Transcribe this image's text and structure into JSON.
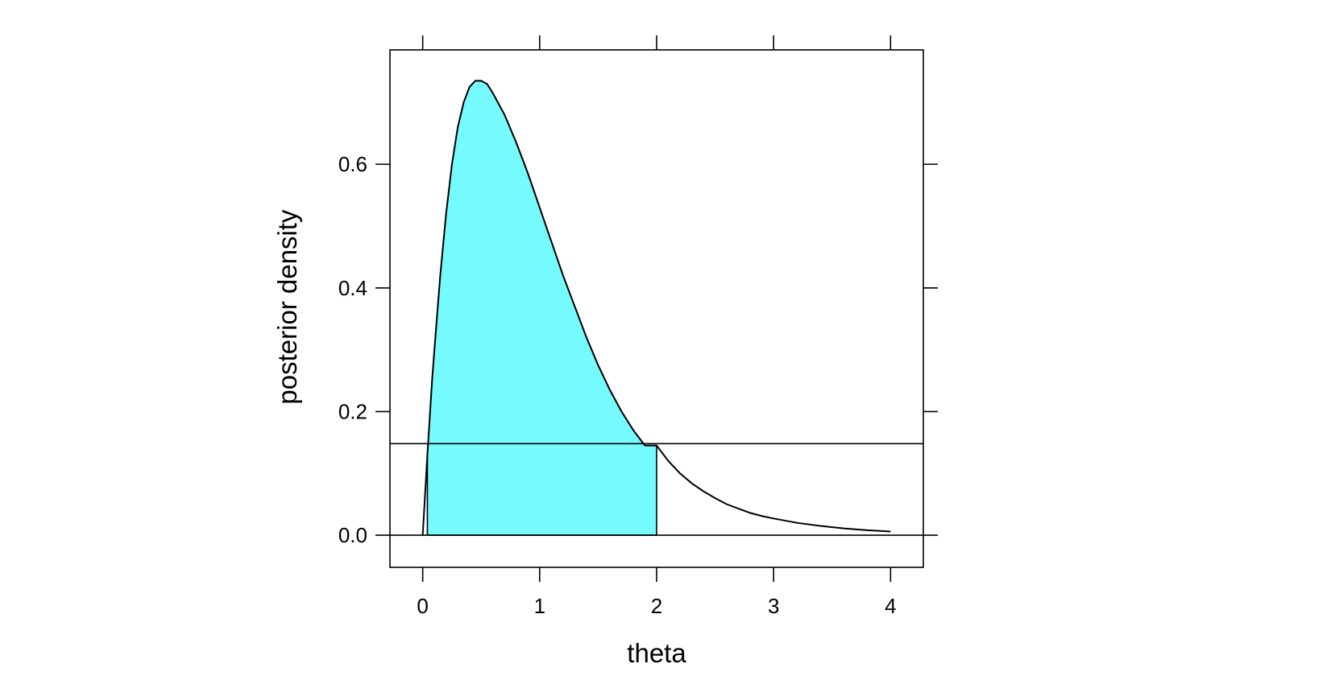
{
  "chart_data": {
    "type": "area",
    "title": "",
    "xlabel": "theta",
    "ylabel": "posterior density",
    "xlim": [
      -0.28,
      4.28
    ],
    "ylim": [
      -0.052,
      0.785
    ],
    "xticks": [
      0,
      1,
      2,
      3,
      4
    ],
    "xtick_labels": [
      "0",
      "1",
      "2",
      "3",
      "4"
    ],
    "yticks": [
      0.0,
      0.2,
      0.4,
      0.6
    ],
    "ytick_labels": [
      "0.0",
      "0.2",
      "0.4",
      "0.6"
    ],
    "grid": false,
    "series": [
      {
        "kind": "density_curve",
        "x": [
          0.0,
          0.02,
          0.04,
          0.06,
          0.08,
          0.1,
          0.15,
          0.2,
          0.25,
          0.3,
          0.35,
          0.4,
          0.45,
          0.5,
          0.55,
          0.6,
          0.7,
          0.8,
          0.9,
          1.0,
          1.1,
          1.2,
          1.3,
          1.4,
          1.5,
          1.6,
          1.7,
          1.8,
          1.9,
          2.0,
          2.1,
          2.2,
          2.3,
          2.4,
          2.5,
          2.6,
          2.7,
          2.8,
          2.9,
          3.0,
          3.2,
          3.4,
          3.6,
          3.8,
          4.0
        ],
        "y": [
          0.0,
          0.065,
          0.13,
          0.19,
          0.25,
          0.3,
          0.42,
          0.52,
          0.6,
          0.66,
          0.7,
          0.725,
          0.735,
          0.735,
          0.73,
          0.715,
          0.68,
          0.635,
          0.585,
          0.53,
          0.475,
          0.42,
          0.37,
          0.32,
          0.275,
          0.235,
          0.2,
          0.17,
          0.145,
          0.145,
          0.12,
          0.1,
          0.084,
          0.071,
          0.06,
          0.05,
          0.043,
          0.036,
          0.031,
          0.027,
          0.02,
          0.015,
          0.011,
          0.008,
          0.006
        ]
      },
      {
        "kind": "shaded_interval",
        "color": "#75FBFD",
        "x_from": 0.04,
        "x_to": 2.0
      },
      {
        "kind": "horizontal_line",
        "y": 0.148
      },
      {
        "kind": "horizontal_line",
        "y": 0.0
      }
    ]
  }
}
